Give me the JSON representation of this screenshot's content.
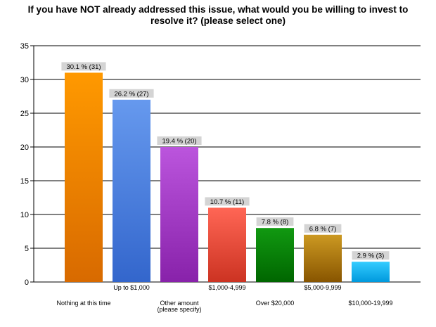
{
  "chart_data": {
    "type": "bar",
    "title_lines": [
      "If you have NOT already addressed this issue, what would you be willing to invest to",
      "resolve it? (please select one)"
    ],
    "categories": [
      [
        "Nothing at this time"
      ],
      [
        "Up to $1,000"
      ],
      [
        "Other amount",
        "(please specify)"
      ],
      [
        "$1,000-4,999"
      ],
      [
        "Over $20,000"
      ],
      [
        "$5,000-9,999"
      ],
      [
        "$10,000-19,999"
      ]
    ],
    "values": [
      31,
      27,
      20,
      11,
      8,
      7,
      3
    ],
    "data_labels": [
      "30.1 % (31)",
      "26.2 % (27)",
      "19.4 % (20)",
      "10.7 % (11)",
      "7.8 % (8)",
      "6.8 % (7)",
      "2.9 % (3)"
    ],
    "colors": [
      [
        "#ff9900",
        "#d86a00"
      ],
      [
        "#6699ee",
        "#3366cc"
      ],
      [
        "#bb55dd",
        "#8822aa"
      ],
      [
        "#ff6655",
        "#cc3322"
      ],
      [
        "#119911",
        "#006600"
      ],
      [
        "#cc9922",
        "#885500"
      ],
      [
        "#33ccff",
        "#0099dd"
      ]
    ],
    "ylim": [
      0,
      35
    ],
    "yticks": [
      0,
      5,
      10,
      15,
      20,
      25,
      30,
      35
    ],
    "grid": true,
    "legend": "none"
  }
}
